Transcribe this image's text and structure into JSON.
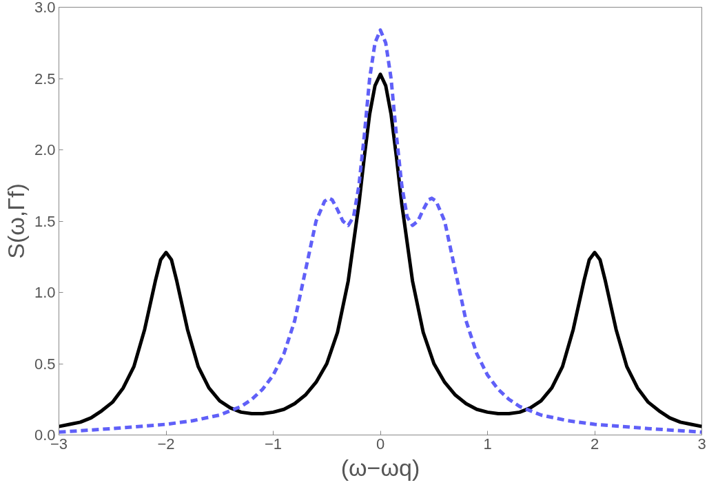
{
  "chart_data": {
    "type": "line",
    "xlabel": "(ω−ωq)",
    "ylabel": "S(ω,Γf)",
    "xlim": [
      -3,
      3
    ],
    "ylim": [
      0,
      3
    ],
    "xticks": [
      {
        "value": -3,
        "label": "−3"
      },
      {
        "value": -2,
        "label": "−2"
      },
      {
        "value": -1,
        "label": "−1"
      },
      0,
      1,
      2,
      3
    ],
    "yticks": [
      {
        "value": 0,
        "label": "0.0"
      },
      {
        "value": 0.5,
        "label": "0.5"
      },
      {
        "value": 1,
        "label": "1.0"
      },
      {
        "value": 1.5,
        "label": "1.5"
      },
      {
        "value": 2,
        "label": "2.0"
      },
      {
        "value": 2.5,
        "label": "2.5"
      },
      {
        "value": 3,
        "label": "3.0"
      }
    ],
    "grid": false,
    "series": [
      {
        "color": "#000000",
        "line_style": "solid",
        "x": [
          -3,
          -2.9,
          -2.8,
          -2.7,
          -2.6,
          -2.5,
          -2.4,
          -2.3,
          -2.2,
          -2.1,
          -2.05,
          -2,
          -1.95,
          -1.9,
          -1.8,
          -1.7,
          -1.6,
          -1.5,
          -1.4,
          -1.3,
          -1.2,
          -1.1,
          -1,
          -0.9,
          -0.8,
          -0.7,
          -0.6,
          -0.5,
          -0.4,
          -0.3,
          -0.2,
          -0.15,
          -0.1,
          -0.05,
          0,
          0.05,
          0.1,
          0.15,
          0.2,
          0.3,
          0.4,
          0.5,
          0.6,
          0.7,
          0.8,
          0.9,
          1,
          1.1,
          1.2,
          1.3,
          1.4,
          1.5,
          1.6,
          1.7,
          1.8,
          1.9,
          1.95,
          2,
          2.05,
          2.1,
          2.2,
          2.3,
          2.4,
          2.5,
          2.6,
          2.7,
          2.8,
          2.9,
          3
        ],
        "values": [
          0.06,
          0.075,
          0.09,
          0.12,
          0.17,
          0.23,
          0.33,
          0.48,
          0.74,
          1.08,
          1.23,
          1.28,
          1.23,
          1.08,
          0.74,
          0.48,
          0.33,
          0.24,
          0.19,
          0.16,
          0.15,
          0.15,
          0.16,
          0.18,
          0.22,
          0.28,
          0.37,
          0.5,
          0.72,
          1.08,
          1.62,
          1.95,
          2.25,
          2.45,
          2.53,
          2.45,
          2.25,
          1.95,
          1.62,
          1.08,
          0.72,
          0.5,
          0.37,
          0.28,
          0.22,
          0.18,
          0.16,
          0.15,
          0.15,
          0.16,
          0.19,
          0.24,
          0.33,
          0.48,
          0.74,
          1.08,
          1.23,
          1.28,
          1.23,
          1.08,
          0.74,
          0.48,
          0.33,
          0.23,
          0.17,
          0.12,
          0.09,
          0.075,
          0.06
        ]
      },
      {
        "color": "#6060f8",
        "line_style": "dashed",
        "x": [
          -3,
          -2.5,
          -2,
          -1.75,
          -1.5,
          -1.3,
          -1.2,
          -1.1,
          -1,
          -0.9,
          -0.8,
          -0.7,
          -0.6,
          -0.52,
          -0.48,
          -0.45,
          -0.4,
          -0.35,
          -0.3,
          -0.25,
          -0.2,
          -0.15,
          -0.1,
          -0.05,
          0,
          0.05,
          0.1,
          0.15,
          0.2,
          0.25,
          0.3,
          0.35,
          0.4,
          0.45,
          0.48,
          0.52,
          0.6,
          0.7,
          0.8,
          0.9,
          1,
          1.1,
          1.2,
          1.3,
          1.5,
          1.75,
          2,
          2.5,
          3
        ],
        "values": [
          0.02,
          0.045,
          0.075,
          0.1,
          0.14,
          0.2,
          0.25,
          0.32,
          0.42,
          0.57,
          0.8,
          1.15,
          1.5,
          1.64,
          1.66,
          1.65,
          1.58,
          1.5,
          1.47,
          1.53,
          1.75,
          2.1,
          2.5,
          2.75,
          2.84,
          2.75,
          2.5,
          2.1,
          1.75,
          1.53,
          1.47,
          1.5,
          1.58,
          1.65,
          1.66,
          1.64,
          1.5,
          1.15,
          0.8,
          0.57,
          0.42,
          0.32,
          0.25,
          0.2,
          0.14,
          0.1,
          0.075,
          0.045,
          0.02
        ]
      }
    ]
  }
}
